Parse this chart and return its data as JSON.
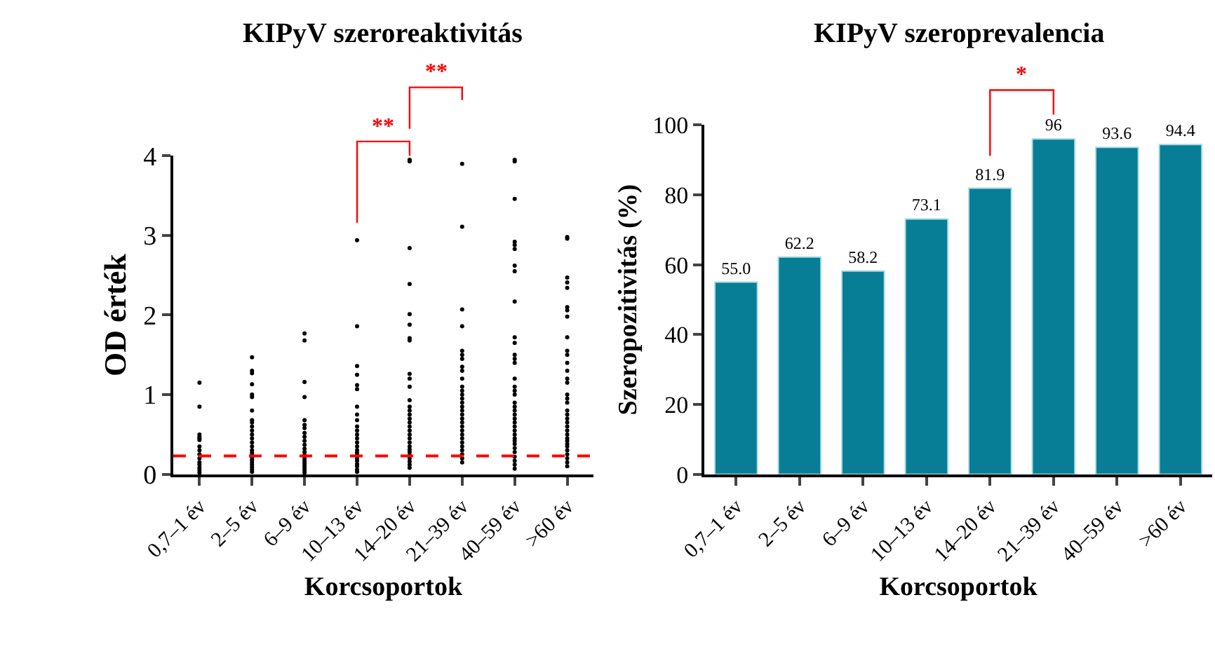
{
  "chart_data": [
    {
      "type": "scatter",
      "title": "KIPyV szeroreaktivitás",
      "xlabel": "Korcsoportok",
      "ylabel": "OD érték",
      "categories": [
        "0,7–1 év",
        "2–5 év",
        "6–9 év",
        "10–13 év",
        "14–20 év",
        "21–39 év",
        "40–59 év",
        ">60 év"
      ],
      "series": [
        {
          "color": "#000000",
          "x": [
            "0,7–1 év",
            "0,7–1 év",
            "0,7–1 év",
            "0,7–1 év",
            "0,7–1 év",
            "0,7–1 év",
            "0,7–1 év",
            "0,7–1 év",
            "0,7–1 év",
            "0,7–1 év",
            "0,7–1 év",
            "0,7–1 év",
            "0,7–1 év",
            "0,7–1 év",
            "0,7–1 év",
            "2–5 év",
            "2–5 év",
            "2–5 év",
            "2–5 év",
            "2–5 év",
            "2–5 év",
            "2–5 év",
            "2–5 év",
            "2–5 év",
            "2–5 év",
            "2–5 év",
            "2–5 év",
            "2–5 év",
            "2–5 év",
            "2–5 év",
            "2–5 év",
            "2–5 év",
            "2–5 év",
            "2–5 év",
            "2–5 év",
            "2–5 év",
            "2–5 év",
            "2–5 év",
            "2–5 év",
            "2–5 év",
            "6–9 év",
            "6–9 év",
            "6–9 év",
            "6–9 év",
            "6–9 év",
            "6–9 év",
            "6–9 év",
            "6–9 év",
            "6–9 év",
            "6–9 év",
            "6–9 év",
            "6–9 év",
            "6–9 év",
            "6–9 év",
            "6–9 év",
            "6–9 év",
            "6–9 év",
            "6–9 év",
            "6–9 év",
            "6–9 év",
            "6–9 év",
            "10–13 év",
            "10–13 év",
            "10–13 év",
            "10–13 év",
            "10–13 év",
            "10–13 év",
            "10–13 év",
            "10–13 év",
            "10–13 év",
            "10–13 év",
            "10–13 év",
            "10–13 év",
            "10–13 év",
            "10–13 év",
            "10–13 év",
            "10–13 év",
            "10–13 év",
            "10–13 év",
            "10–13 év",
            "10–13 év",
            "10–13 év",
            "10–13 év",
            "10–13 év",
            "10–13 év",
            "14–20 év",
            "14–20 év",
            "14–20 év",
            "14–20 év",
            "14–20 év",
            "14–20 év",
            "14–20 év",
            "14–20 év",
            "14–20 év",
            "14–20 év",
            "14–20 év",
            "14–20 év",
            "14–20 év",
            "14–20 év",
            "14–20 év",
            "14–20 év",
            "14–20 év",
            "14–20 év",
            "14–20 év",
            "14–20 év",
            "14–20 év",
            "14–20 év",
            "14–20 év",
            "14–20 év",
            "14–20 év",
            "14–20 év",
            "14–20 év",
            "14–20 év",
            "14–20 év",
            "14–20 év",
            "21–39 év",
            "21–39 év",
            "21–39 év",
            "21–39 év",
            "21–39 év",
            "21–39 év",
            "21–39 év",
            "21–39 év",
            "21–39 év",
            "21–39 év",
            "21–39 év",
            "21–39 év",
            "21–39 év",
            "21–39 év",
            "21–39 év",
            "21–39 év",
            "21–39 év",
            "21–39 év",
            "21–39 év",
            "21–39 év",
            "21–39 év",
            "21–39 év",
            "21–39 év",
            "21–39 év",
            "21–39 év",
            "21–39 év",
            "21–39 év",
            "21–39 év",
            "21–39 év",
            "21–39 év",
            "40–59 év",
            "40–59 év",
            "40–59 év",
            "40–59 év",
            "40–59 év",
            "40–59 év",
            "40–59 év",
            "40–59 év",
            "40–59 év",
            "40–59 év",
            "40–59 év",
            "40–59 év",
            "40–59 év",
            "40–59 év",
            "40–59 év",
            "40–59 év",
            "40–59 év",
            "40–59 év",
            "40–59 év",
            "40–59 év",
            "40–59 év",
            "40–59 év",
            "40–59 év",
            "40–59 év",
            "40–59 év",
            "40–59 év",
            "40–59 év",
            "40–59 év",
            "40–59 év",
            "40–59 év",
            "40–59 év",
            "40–59 év",
            "40–59 év",
            "40–59 év",
            "40–59 év",
            "40–59 év",
            ">60 év",
            ">60 év",
            ">60 év",
            ">60 év",
            ">60 év",
            ">60 év",
            ">60 év",
            ">60 év",
            ">60 év",
            ">60 év",
            ">60 év",
            ">60 év",
            ">60 év",
            ">60 év",
            ">60 év",
            ">60 év",
            ">60 év",
            ">60 év",
            ">60 év",
            ">60 év",
            ">60 év",
            ">60 év",
            ">60 év",
            ">60 év",
            ">60 év",
            ">60 év",
            ">60 év",
            ">60 év",
            ">60 év",
            ">60 év",
            ">60 év",
            ">60 év",
            ">60 év",
            ">60 év"
          ],
          "values": [
            1.15,
            0.85,
            0.5,
            0.47,
            0.45,
            0.43,
            0.35,
            0.3,
            0.25,
            0.2,
            0.15,
            0.12,
            0.08,
            0.05,
            0.02,
            1.47,
            1.3,
            1.27,
            1.13,
            1.0,
            0.97,
            0.8,
            0.68,
            0.65,
            0.6,
            0.55,
            0.5,
            0.45,
            0.4,
            0.35,
            0.3,
            0.27,
            0.24,
            0.21,
            0.18,
            0.15,
            0.12,
            0.09,
            0.06,
            0.03,
            1.77,
            1.68,
            1.16,
            0.97,
            0.68,
            0.62,
            0.58,
            0.52,
            0.47,
            0.42,
            0.37,
            0.32,
            0.28,
            0.24,
            0.2,
            0.17,
            0.14,
            0.11,
            0.08,
            0.05,
            0.02,
            2.94,
            1.86,
            1.36,
            1.25,
            1.12,
            1.07,
            0.85,
            0.75,
            0.68,
            0.6,
            0.55,
            0.5,
            0.45,
            0.4,
            0.35,
            0.3,
            0.27,
            0.24,
            0.2,
            0.17,
            0.13,
            0.1,
            0.06,
            0.03,
            3.95,
            3.93,
            2.84,
            2.39,
            2.01,
            1.88,
            1.71,
            1.68,
            1.26,
            1.2,
            1.1,
            0.93,
            0.85,
            0.8,
            0.75,
            0.7,
            0.65,
            0.6,
            0.55,
            0.5,
            0.45,
            0.4,
            0.35,
            0.31,
            0.28,
            0.24,
            0.2,
            0.16,
            0.12,
            0.08,
            3.9,
            3.11,
            2.07,
            1.86,
            1.55,
            1.5,
            1.45,
            1.35,
            1.3,
            1.2,
            1.1,
            1.05,
            1.0,
            0.95,
            0.9,
            0.85,
            0.8,
            0.75,
            0.7,
            0.65,
            0.6,
            0.55,
            0.5,
            0.45,
            0.4,
            0.35,
            0.3,
            0.25,
            0.2,
            0.15,
            3.95,
            3.93,
            3.46,
            2.92,
            2.88,
            2.83,
            2.62,
            2.55,
            2.17,
            1.72,
            1.65,
            1.5,
            1.45,
            1.4,
            1.2,
            1.1,
            1.05,
            1.0,
            0.9,
            0.85,
            0.8,
            0.75,
            0.7,
            0.65,
            0.6,
            0.55,
            0.5,
            0.45,
            0.42,
            0.38,
            0.33,
            0.28,
            0.22,
            0.17,
            0.12,
            0.07,
            2.98,
            2.96,
            2.47,
            2.41,
            2.34,
            2.1,
            2.06,
            1.98,
            1.72,
            1.55,
            1.5,
            1.4,
            1.3,
            1.2,
            1.15,
            1.0,
            0.95,
            0.9,
            0.8,
            0.75,
            0.7,
            0.65,
            0.6,
            0.55,
            0.5,
            0.45,
            0.42,
            0.38,
            0.35,
            0.3,
            0.25,
            0.2,
            0.15,
            0.1
          ]
        }
      ],
      "marker": "circle",
      "ylim": [
        0,
        4
      ],
      "yticks": [
        0,
        1,
        2,
        3,
        4
      ],
      "ref_lines": [
        {
          "axis": "y",
          "value": 0.23,
          "color": "#ff0000",
          "line_style": "dashed"
        }
      ],
      "annotations": [
        "**",
        "**"
      ]
    },
    {
      "type": "bar",
      "title": "KIPyV szeroprevalencia",
      "xlabel": "Korcsoportok",
      "ylabel": "Szeropozitivitás (%)",
      "categories": [
        "0,7–1 év",
        "2–5 év",
        "6–9 év",
        "10–13 év",
        "14–20 év",
        "21–39 év",
        "40–59 év",
        ">60 év"
      ],
      "values": [
        55.0,
        62.2,
        58.2,
        73.1,
        81.9,
        96,
        93.6,
        94.4
      ],
      "value_labels": [
        "55.0",
        "62.2",
        "58.2",
        "73.1",
        "81.9",
        "96",
        "93.6",
        "94.4"
      ],
      "color": "#087d96",
      "ylim": [
        0,
        100
      ],
      "yticks": [
        0,
        20,
        40,
        60,
        80,
        100
      ],
      "annotations": [
        "*"
      ]
    }
  ]
}
